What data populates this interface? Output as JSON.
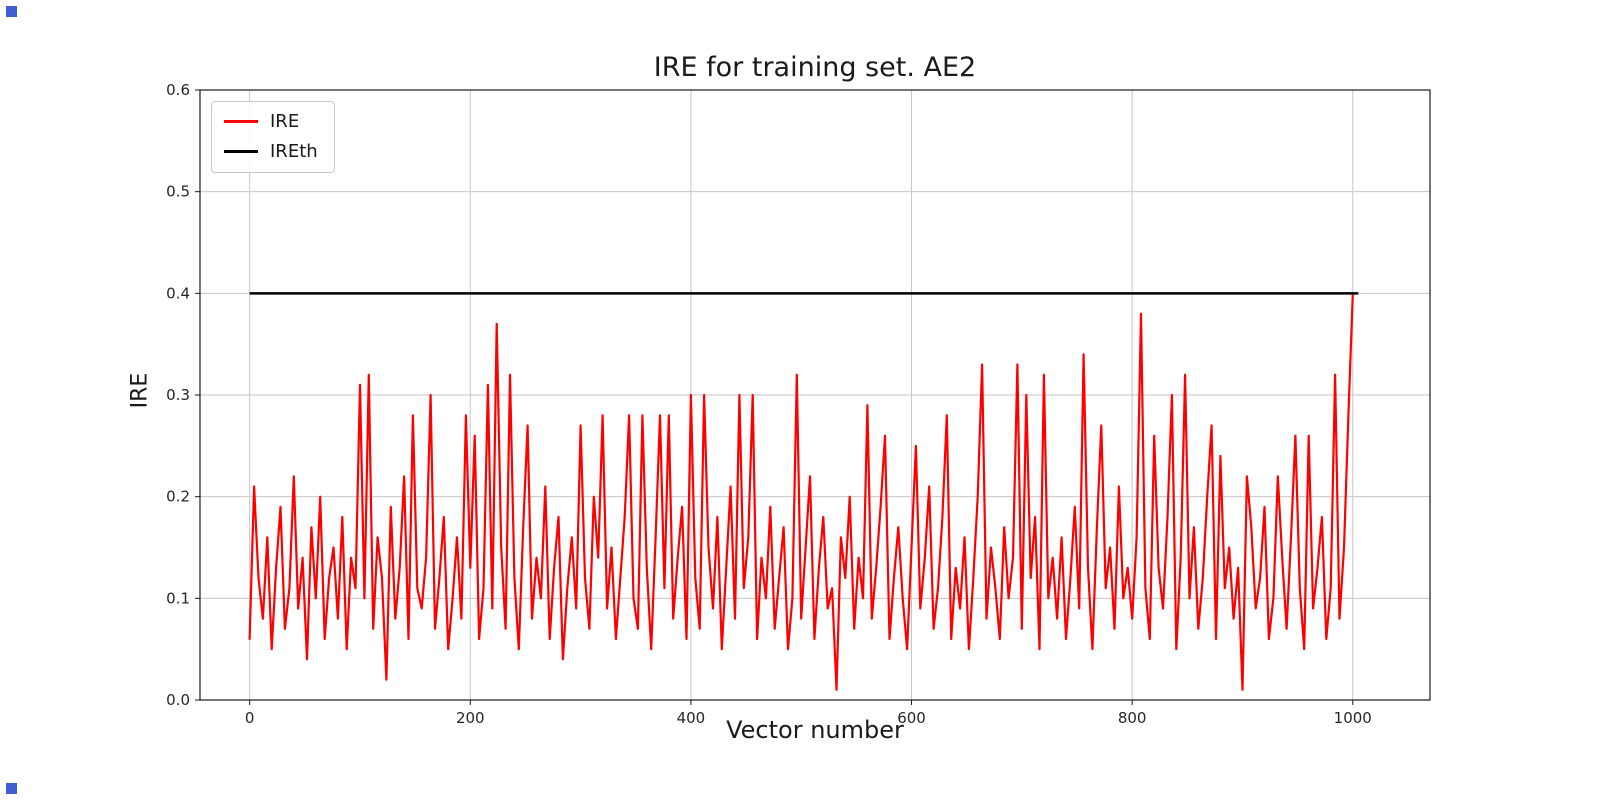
{
  "figure": {
    "corner_marker_color": "#3d5fd0"
  },
  "chart_data": {
    "type": "line",
    "title": "IRE for training set. AE2",
    "xlabel": "Vector number",
    "ylabel": "IRE",
    "xlim": [
      -45,
      1070
    ],
    "ylim": [
      0,
      0.6
    ],
    "x_ticks": [
      0,
      200,
      400,
      600,
      800,
      1000
    ],
    "y_ticks": [
      0.0,
      0.1,
      0.2,
      0.3,
      0.4,
      0.5,
      0.6
    ],
    "grid": true,
    "grid_color": "#c6c6c6",
    "spine_color": "#1a1a1a",
    "legend_position": "upper left",
    "series": [
      {
        "name": "IRE",
        "color": "#ff0000",
        "line_width": 2.2,
        "x_start": 0,
        "x_step": 4,
        "values": [
          0.06,
          0.21,
          0.12,
          0.08,
          0.16,
          0.05,
          0.13,
          0.19,
          0.07,
          0.11,
          0.22,
          0.09,
          0.14,
          0.04,
          0.17,
          0.1,
          0.2,
          0.06,
          0.12,
          0.15,
          0.08,
          0.18,
          0.05,
          0.14,
          0.11,
          0.31,
          0.1,
          0.32,
          0.07,
          0.16,
          0.12,
          0.02,
          0.19,
          0.08,
          0.13,
          0.22,
          0.06,
          0.28,
          0.11,
          0.09,
          0.14,
          0.3,
          0.07,
          0.12,
          0.18,
          0.05,
          0.1,
          0.16,
          0.08,
          0.28,
          0.13,
          0.26,
          0.06,
          0.11,
          0.31,
          0.09,
          0.37,
          0.15,
          0.07,
          0.32,
          0.12,
          0.05,
          0.17,
          0.27,
          0.08,
          0.14,
          0.1,
          0.21,
          0.06,
          0.13,
          0.18,
          0.04,
          0.11,
          0.16,
          0.09,
          0.27,
          0.12,
          0.07,
          0.2,
          0.14,
          0.28,
          0.09,
          0.15,
          0.06,
          0.12,
          0.18,
          0.28,
          0.1,
          0.07,
          0.28,
          0.13,
          0.05,
          0.16,
          0.28,
          0.11,
          0.28,
          0.08,
          0.14,
          0.19,
          0.06,
          0.3,
          0.12,
          0.07,
          0.3,
          0.15,
          0.09,
          0.18,
          0.05,
          0.13,
          0.21,
          0.08,
          0.3,
          0.11,
          0.16,
          0.3,
          0.06,
          0.14,
          0.1,
          0.19,
          0.07,
          0.12,
          0.17,
          0.05,
          0.1,
          0.32,
          0.08,
          0.15,
          0.22,
          0.06,
          0.13,
          0.18,
          0.09,
          0.11,
          0.01,
          0.16,
          0.12,
          0.2,
          0.07,
          0.14,
          0.1,
          0.29,
          0.08,
          0.13,
          0.19,
          0.26,
          0.06,
          0.12,
          0.17,
          0.1,
          0.05,
          0.15,
          0.25,
          0.09,
          0.14,
          0.21,
          0.07,
          0.11,
          0.18,
          0.28,
          0.06,
          0.13,
          0.09,
          0.16,
          0.05,
          0.12,
          0.2,
          0.33,
          0.08,
          0.15,
          0.11,
          0.06,
          0.17,
          0.1,
          0.14,
          0.33,
          0.07,
          0.3,
          0.12,
          0.18,
          0.05,
          0.32,
          0.1,
          0.14,
          0.08,
          0.16,
          0.06,
          0.12,
          0.19,
          0.09,
          0.34,
          0.13,
          0.05,
          0.17,
          0.27,
          0.11,
          0.15,
          0.07,
          0.21,
          0.1,
          0.13,
          0.08,
          0.16,
          0.38,
          0.11,
          0.06,
          0.26,
          0.13,
          0.09,
          0.18,
          0.3,
          0.05,
          0.14,
          0.32,
          0.1,
          0.17,
          0.07,
          0.12,
          0.2,
          0.27,
          0.06,
          0.24,
          0.11,
          0.15,
          0.08,
          0.13,
          0.01,
          0.22,
          0.17,
          0.09,
          0.12,
          0.19,
          0.06,
          0.1,
          0.22,
          0.14,
          0.07,
          0.16,
          0.26,
          0.11,
          0.05,
          0.26,
          0.09,
          0.13,
          0.18,
          0.06,
          0.11,
          0.32,
          0.08,
          0.15,
          0.28,
          0.4
        ]
      },
      {
        "name": "IREth",
        "color": "#000000",
        "line_width": 2.5,
        "type": "hline",
        "y": 0.4,
        "x_range": [
          0,
          1005
        ]
      }
    ]
  }
}
